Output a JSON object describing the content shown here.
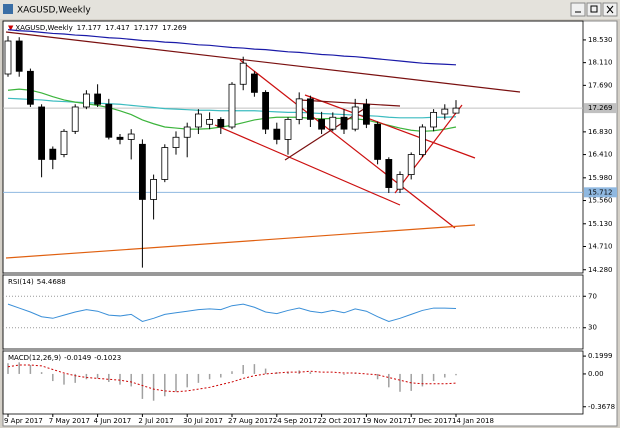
{
  "window_title": "XAGUSD,Weekly",
  "chart_data": [
    {
      "type": "candlestick",
      "title": "XAGUSD,Weekly",
      "categories": [
        "9 Apr 2017",
        null,
        null,
        null,
        "7 May 2017",
        null,
        null,
        null,
        "4 Jun 2017",
        null,
        null,
        null,
        "2 Jul 2017",
        null,
        null,
        null,
        "30 Jul 2017",
        null,
        null,
        null,
        "27 Aug 2017",
        null,
        null,
        null,
        "24 Sep 2017",
        null,
        null,
        null,
        "22 Oct 2017",
        null,
        null,
        null,
        "19 Nov 2017",
        null,
        null,
        null,
        "17 Dec 2017",
        null,
        null,
        null,
        "14 Jan 2018"
      ],
      "open": [
        17.9,
        18.51,
        17.95,
        17.29,
        16.51,
        16.41,
        16.84,
        17.29,
        17.53,
        17.34,
        16.73,
        16.69,
        16.6,
        15.58,
        15.95,
        16.54,
        16.73,
        16.92,
        16.97,
        17.06,
        16.92,
        17.71,
        17.9,
        17.56,
        16.88,
        16.69,
        17.06,
        17.44,
        17.06,
        16.88,
        17.1,
        16.88,
        17.34,
        16.97,
        16.32,
        15.77,
        16.04,
        16.41,
        16.92,
        17.16,
        17.177
      ],
      "high": [
        18.6,
        18.58,
        18.0,
        17.34,
        16.56,
        16.88,
        17.34,
        17.6,
        17.71,
        17.44,
        16.79,
        16.88,
        16.69,
        16.04,
        16.6,
        16.84,
        17.0,
        17.25,
        17.19,
        17.1,
        17.75,
        18.22,
        17.95,
        17.6,
        17.0,
        17.1,
        17.56,
        17.5,
        17.2,
        17.19,
        17.25,
        17.44,
        17.44,
        17.02,
        16.36,
        16.1,
        16.45,
        16.97,
        17.25,
        17.34,
        17.417
      ],
      "low": [
        17.85,
        17.85,
        17.29,
        15.99,
        16.14,
        16.36,
        16.79,
        17.25,
        17.29,
        16.69,
        16.6,
        16.32,
        14.32,
        15.21,
        15.9,
        16.41,
        16.36,
        16.79,
        16.88,
        16.79,
        16.88,
        17.6,
        17.48,
        16.79,
        16.6,
        16.41,
        16.97,
        16.92,
        16.79,
        16.84,
        16.79,
        16.84,
        16.9,
        16.23,
        15.7,
        15.7,
        15.95,
        16.36,
        16.84,
        17.06,
        17.177
      ],
      "close": [
        18.51,
        17.95,
        17.34,
        16.32,
        16.32,
        16.84,
        17.29,
        17.53,
        17.34,
        16.73,
        16.69,
        16.79,
        15.58,
        15.95,
        16.54,
        16.73,
        16.92,
        17.16,
        17.06,
        16.92,
        17.71,
        18.1,
        17.56,
        16.88,
        16.69,
        17.06,
        17.44,
        17.06,
        16.88,
        17.1,
        16.88,
        17.29,
        16.97,
        16.32,
        15.8,
        16.04,
        16.41,
        16.92,
        17.19,
        17.25,
        17.269
      ],
      "lines": [
        {
          "color": "#1a1aa8",
          "values": [
            18.72,
            18.7,
            18.69,
            18.67,
            18.65,
            18.64,
            18.62,
            18.61,
            18.59,
            18.57,
            18.56,
            18.54,
            18.52,
            18.51,
            18.49,
            18.48,
            18.46,
            18.44,
            18.43,
            18.41,
            18.39,
            18.38,
            18.36,
            18.35,
            18.33,
            18.31,
            18.3,
            18.28,
            18.26,
            18.25,
            18.23,
            18.22,
            18.2,
            18.18,
            18.16,
            18.14,
            18.12,
            18.1,
            18.09,
            18.08,
            18.07
          ]
        },
        {
          "color": "#3cbcc0",
          "values": [
            17.45,
            17.44,
            17.43,
            17.42,
            17.4,
            17.39,
            17.38,
            17.37,
            17.36,
            17.35,
            17.34,
            17.32,
            17.3,
            17.28,
            17.26,
            17.25,
            17.24,
            17.23,
            17.23,
            17.22,
            17.22,
            17.22,
            17.22,
            17.21,
            17.2,
            17.19,
            17.19,
            17.18,
            17.17,
            17.16,
            17.15,
            17.14,
            17.13,
            17.12,
            17.1,
            17.09,
            17.09,
            17.09,
            17.1,
            17.1,
            17.11
          ]
        },
        {
          "color": "#3cb43c",
          "values": [
            17.6,
            17.62,
            17.6,
            17.55,
            17.48,
            17.42,
            17.38,
            17.35,
            17.32,
            17.28,
            17.22,
            17.15,
            17.05,
            16.98,
            16.92,
            16.9,
            16.88,
            16.88,
            16.89,
            16.92,
            16.95,
            17.0,
            17.05,
            17.08,
            17.1,
            17.1,
            17.1,
            17.08,
            17.07,
            17.08,
            17.08,
            17.07,
            17.05,
            17.0,
            16.95,
            16.9,
            16.86,
            16.84,
            16.85,
            16.88,
            16.92
          ]
        }
      ],
      "price_lines": [
        {
          "value": 17.269,
          "color": "#c0c0c0"
        },
        {
          "value": 15.712,
          "color": "#8fb8e0"
        }
      ],
      "ylim": [
        14.22,
        18.88
      ],
      "yticks": [
        {
          "value": 18.53,
          "label": "18.530"
        },
        {
          "value": 18.11,
          "label": "18.110"
        },
        {
          "value": 17.69,
          "label": "17.690"
        },
        {
          "value": 16.83,
          "label": "16.830"
        },
        {
          "value": 16.41,
          "label": "16.410"
        },
        {
          "value": 15.98,
          "label": "15.980"
        },
        {
          "value": 15.56,
          "label": "15.560"
        },
        {
          "value": 15.13,
          "label": "15.130"
        },
        {
          "value": 14.71,
          "label": "14.710"
        },
        {
          "value": 14.28,
          "label": "14.280"
        }
      ]
    },
    {
      "type": "line",
      "title": "RSI(14)",
      "color": "#3a8fd8",
      "values": [
        60,
        55,
        50,
        44,
        42,
        46,
        50,
        53,
        51,
        46,
        45,
        47,
        38,
        42,
        47,
        49,
        51,
        53,
        54,
        53,
        58,
        60,
        56,
        50,
        48,
        52,
        55,
        51,
        49,
        52,
        49,
        54,
        51,
        44,
        38,
        42,
        47,
        52,
        55,
        55,
        54.4688
      ],
      "ylim": [
        3,
        97
      ],
      "yticks": [
        70,
        30
      ]
    },
    {
      "type": "macd",
      "title": "MACD(12,26,9)",
      "series": [
        {
          "color": "#a0a0a0",
          "values": [
            0.12,
            0.13,
            0.1,
            0.02,
            -0.08,
            -0.12,
            -0.1,
            -0.06,
            -0.05,
            -0.09,
            -0.12,
            -0.14,
            -0.28,
            -0.3,
            -0.25,
            -0.2,
            -0.15,
            -0.1,
            -0.06,
            -0.04,
            0.03,
            0.1,
            0.11,
            0.06,
            0.02,
            0.02,
            0.04,
            0.02,
            0.0,
            0.0,
            -0.01,
            0.01,
            0.0,
            -0.06,
            -0.15,
            -0.2,
            -0.19,
            -0.14,
            -0.08,
            -0.04,
            -0.0149
          ]
        },
        {
          "color": "#cc0000",
          "values": [
            0.08,
            0.1,
            0.1,
            0.09,
            0.05,
            0.01,
            -0.02,
            -0.04,
            -0.05,
            -0.06,
            -0.07,
            -0.09,
            -0.13,
            -0.17,
            -0.19,
            -0.2,
            -0.19,
            -0.17,
            -0.15,
            -0.12,
            -0.09,
            -0.05,
            -0.02,
            0.0,
            0.01,
            0.02,
            0.02,
            0.03,
            0.02,
            0.02,
            0.01,
            0.01,
            0.0,
            -0.01,
            -0.04,
            -0.07,
            -0.1,
            -0.11,
            -0.11,
            -0.11,
            -0.1023
          ]
        }
      ],
      "ylim": [
        -0.449,
        0.257
      ],
      "yticks": [
        0.1999,
        {
          "value": 0,
          "label": "0.00"
        },
        -0.3678
      ]
    }
  ]
}
